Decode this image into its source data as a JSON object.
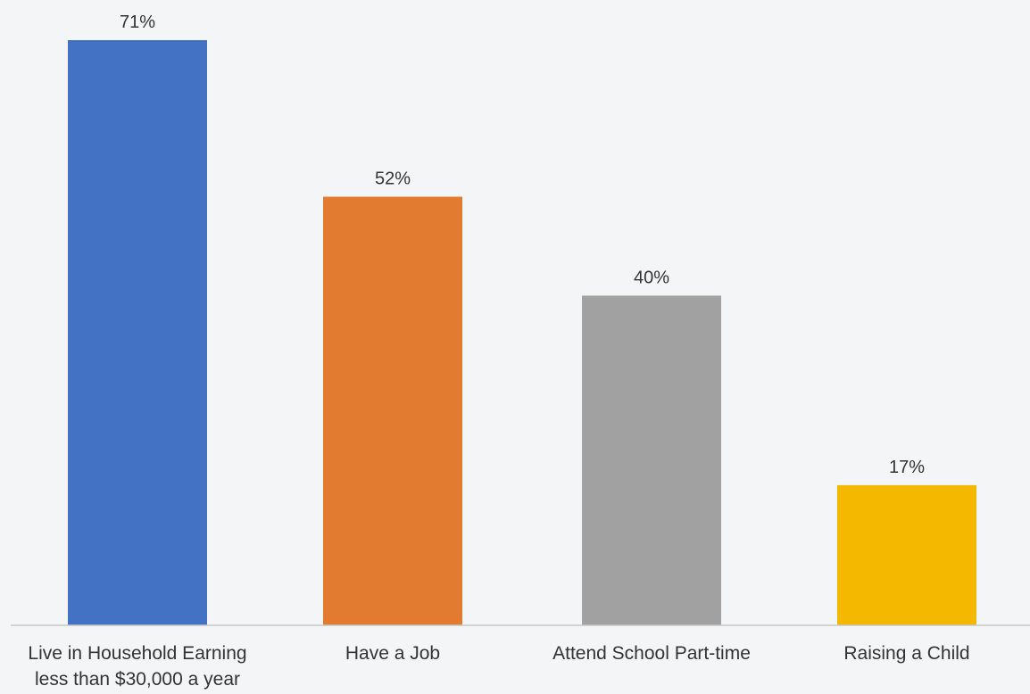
{
  "chart_data": {
    "type": "bar",
    "categories": [
      [
        "Live in Household Earning",
        "less than $30,000 a year"
      ],
      [
        "Have a Job"
      ],
      [
        "Attend School Part-time"
      ],
      [
        "Raising a Child"
      ]
    ],
    "values": [
      71,
      52,
      40,
      17
    ],
    "value_labels": [
      "71%",
      "52%",
      "40%",
      "17%"
    ],
    "colors": [
      "#4372c4",
      "#e27b30",
      "#a0a1a0",
      "#f5b800"
    ],
    "ylim": [
      0,
      71
    ],
    "grid": false,
    "legend": "none",
    "title": "",
    "xlabel": "",
    "ylabel": ""
  }
}
